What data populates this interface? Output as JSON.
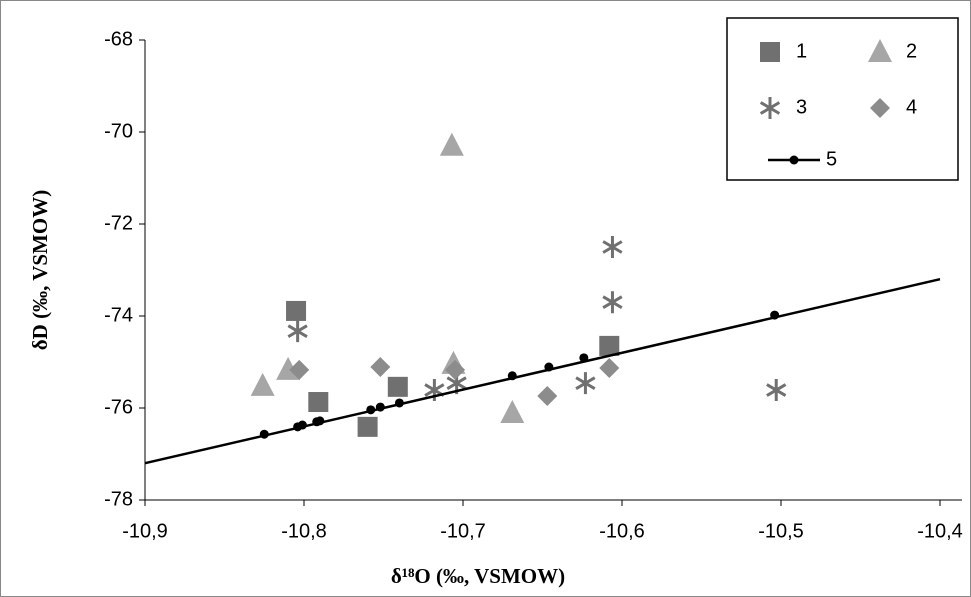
{
  "chart_data": {
    "type": "scatter",
    "xlabel": "δ¹⁸O (‰, VSMOW)",
    "ylabel": "δD (‰, VSMOW)",
    "xlim": [
      -10.9,
      -10.4
    ],
    "ylim": [
      -78,
      -68
    ],
    "xticks": [
      {
        "value": -10.9,
        "label": "-10,9"
      },
      {
        "value": -10.8,
        "label": "-10,8"
      },
      {
        "value": -10.7,
        "label": "-10,7"
      },
      {
        "value": -10.6,
        "label": "-10,6"
      },
      {
        "value": -10.5,
        "label": "-10,5"
      },
      {
        "value": -10.4,
        "label": "-10,4"
      }
    ],
    "yticks": [
      -78,
      -76,
      -74,
      -72,
      -70,
      -68
    ],
    "series": [
      {
        "name": "1",
        "color": "#707070",
        "marker": "square",
        "x": [
          -10.805,
          -10.791,
          -10.741,
          -10.76,
          -10.608
        ],
        "values": [
          -73.89,
          -75.87,
          -75.54,
          -76.41,
          -74.65
        ]
      },
      {
        "name": "2",
        "color": "#a6a6a6",
        "marker": "triangle",
        "x": [
          -10.826,
          -10.81,
          -10.707,
          -10.706,
          -10.669
        ],
        "values": [
          -75.52,
          -75.17,
          -70.3,
          -75.04,
          -76.11
        ]
      },
      {
        "name": "3",
        "color": "#707070",
        "marker": "asterisk",
        "x": [
          -10.804,
          -10.718,
          -10.704,
          -10.623,
          -10.606,
          -10.606,
          -10.503
        ],
        "values": [
          -74.33,
          -75.61,
          -75.46,
          -75.46,
          -72.5,
          -73.7,
          -75.61
        ]
      },
      {
        "name": "4",
        "color": "#8c8c8c",
        "marker": "diamond",
        "x": [
          -10.803,
          -10.752,
          -10.705,
          -10.647,
          -10.608
        ],
        "values": [
          -75.17,
          -75.11,
          -75.17,
          -75.74,
          -75.13
        ]
      },
      {
        "name": "5",
        "color": "#000000",
        "marker": "circle",
        "x": [
          -10.825,
          -10.804,
          -10.801,
          -10.792,
          -10.79,
          -10.758,
          -10.752,
          -10.74,
          -10.669,
          -10.646,
          -10.624,
          -10.504
        ],
        "values": [
          -76.57,
          -76.41,
          -76.37,
          -76.3,
          -76.28,
          -76.04,
          -75.98,
          -75.89,
          -75.3,
          -75.11,
          -74.91,
          -73.98
        ],
        "fit_x": [
          -10.9,
          -10.4
        ],
        "fit_values": [
          -77.2,
          -73.2
        ]
      }
    ]
  }
}
